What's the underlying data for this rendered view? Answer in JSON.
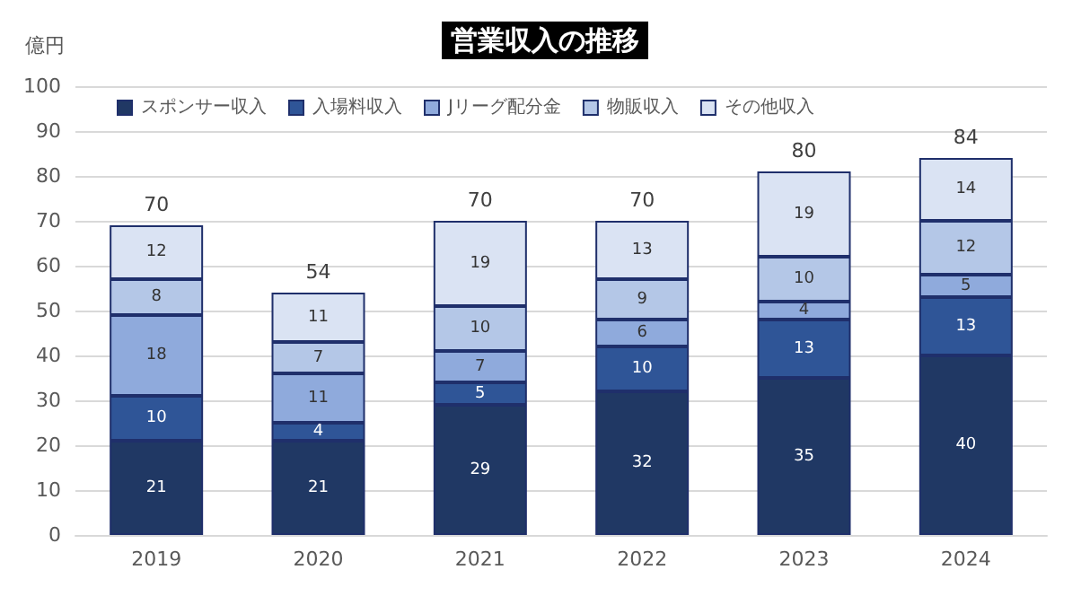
{
  "chart_data": {
    "type": "bar",
    "title": "営業収入の推移",
    "ylabel": "億円",
    "stacked": true,
    "categories": [
      "2019",
      "2020",
      "2021",
      "2022",
      "2023",
      "2024"
    ],
    "series": [
      {
        "name": "スポンサー収入",
        "color": "#203864",
        "values": [
          21,
          21,
          29,
          32,
          35,
          40
        ]
      },
      {
        "name": "入場料収入",
        "color": "#2f5597",
        "values": [
          10,
          4,
          5,
          10,
          13,
          13
        ]
      },
      {
        "name": "Jリーグ配分金",
        "color": "#8faadc",
        "values": [
          18,
          11,
          7,
          6,
          4,
          5
        ]
      },
      {
        "name": "物販収入",
        "color": "#b4c7e7",
        "values": [
          8,
          7,
          10,
          9,
          10,
          12
        ]
      },
      {
        "name": "その他収入",
        "color": "#dae3f3",
        "values": [
          12,
          11,
          19,
          13,
          19,
          14
        ]
      }
    ],
    "totals": [
      "70",
      "54",
      "70",
      "70",
      "80",
      "84"
    ],
    "data_labels": true,
    "ylim": [
      0,
      100
    ],
    "yticks": [
      0,
      10,
      20,
      30,
      40,
      50,
      60,
      70,
      80,
      90,
      100
    ],
    "grid": "y",
    "legend": "top left"
  }
}
